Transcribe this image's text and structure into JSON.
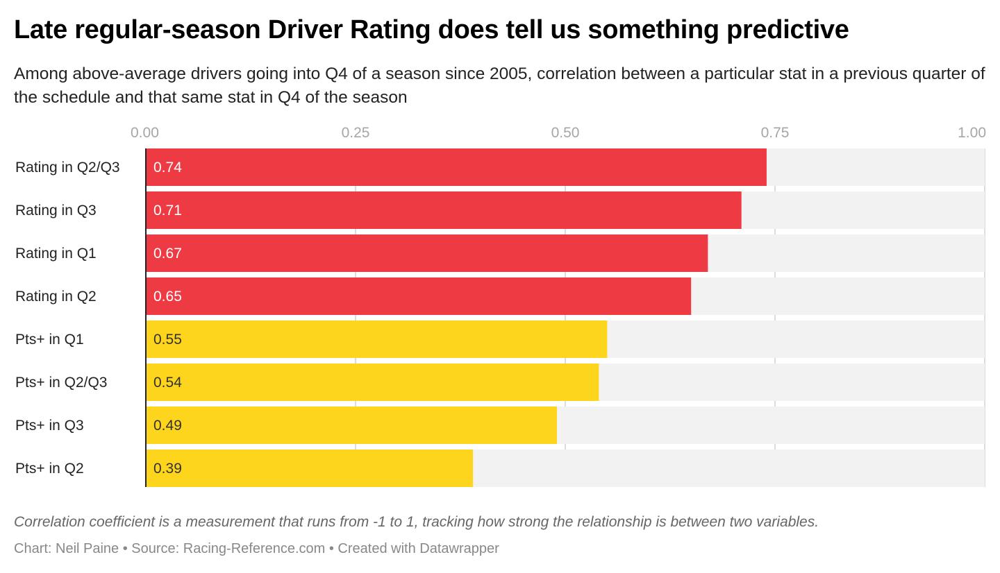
{
  "chart_data": {
    "type": "bar",
    "orientation": "horizontal",
    "title": "Late regular-season Driver Rating does tell us something predictive",
    "subtitle": "Among above-average drivers going into Q4 of a season since 2005, correlation between a particular stat in a previous quarter of the schedule and that same stat in Q4 of the season",
    "categories": [
      "Rating in Q2/Q3",
      "Rating in Q3",
      "Rating in Q1",
      "Rating in Q2",
      "Pts+ in Q1",
      "Pts+ in Q2/Q3",
      "Pts+ in Q3",
      "Pts+ in Q2"
    ],
    "values": [
      0.74,
      0.71,
      0.67,
      0.65,
      0.55,
      0.54,
      0.49,
      0.39
    ],
    "value_labels": [
      "0.74",
      "0.71",
      "0.67",
      "0.65",
      "0.55",
      "0.54",
      "0.49",
      "0.39"
    ],
    "bar_colors": [
      "#ee3a43",
      "#ee3a43",
      "#ee3a43",
      "#ee3a43",
      "#fed51d",
      "#fed51d",
      "#fed51d",
      "#fed51d"
    ],
    "label_colors": [
      "#ffffff",
      "#ffffff",
      "#ffffff",
      "#ffffff",
      "#333333",
      "#333333",
      "#333333",
      "#333333"
    ],
    "background_bar_color": "#f2f2f2",
    "xlim": [
      0,
      1
    ],
    "xticks": [
      0,
      0.25,
      0.5,
      0.75,
      1
    ],
    "xtick_labels": [
      "0.00",
      "0.25",
      "0.50",
      "0.75",
      "1.00"
    ],
    "grid": true,
    "xlabel": "",
    "ylabel": ""
  },
  "notes": "Correlation coefficient is a measurement that runs from -1 to 1, tracking how strong the relationship is between two variables.",
  "credit": "Chart: Neil Paine • Source: Racing-Reference.com • Created with Datawrapper"
}
